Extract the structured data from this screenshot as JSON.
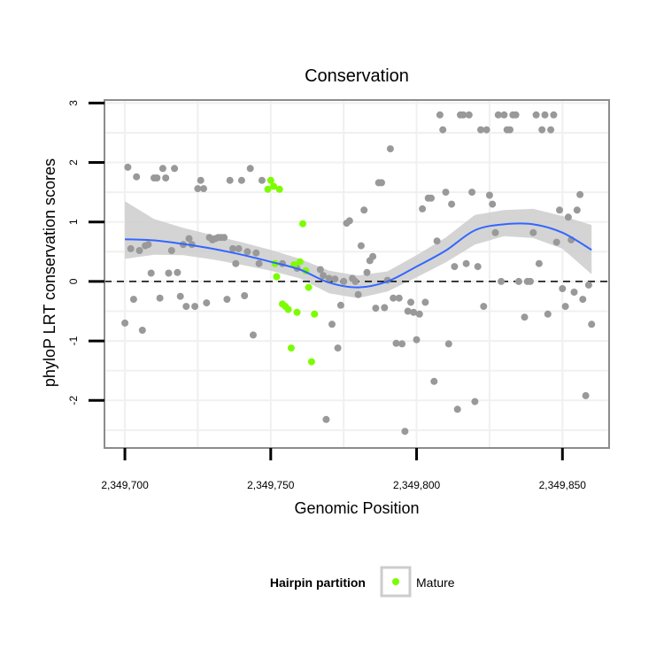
{
  "chart_data": {
    "type": "scatter",
    "title": "Conservation",
    "xlabel": "Genomic Position",
    "ylabel": "phyloP LRT conservation scores",
    "xlim": [
      2349693,
      2349866
    ],
    "ylim": [
      -2.8,
      3.05
    ],
    "x_ticks": [
      2349700,
      2349750,
      2349800,
      2349850
    ],
    "x_tick_labels": [
      "2,349,700",
      "2,349,750",
      "2,349,800",
      "2,349,850"
    ],
    "y_ticks": [
      -2,
      -1,
      0,
      1,
      2,
      3
    ],
    "y_tick_labels": [
      "-2",
      "-1",
      "0",
      "1",
      "2",
      "3"
    ],
    "reference_line": {
      "y": 0,
      "style": "dashed"
    },
    "grid": true,
    "legend": {
      "title": "Hairpin partition",
      "position": "bottom",
      "entries": [
        {
          "label": "Mature",
          "color": "#7cfc00"
        }
      ]
    },
    "colors": {
      "points": "#999999",
      "mature": "#7cfc00",
      "smooth": "#3366ff",
      "band": "#cccccc"
    },
    "series": [
      {
        "name": "Hairpin",
        "color": "#999999",
        "points": [
          [
            2349700,
            -0.7
          ],
          [
            2349701,
            1.92
          ],
          [
            2349702,
            0.55
          ],
          [
            2349703,
            -0.3
          ],
          [
            2349704,
            1.76
          ],
          [
            2349705,
            0.52
          ],
          [
            2349706,
            -0.82
          ],
          [
            2349707,
            0.6
          ],
          [
            2349708,
            0.62
          ],
          [
            2349709,
            0.14
          ],
          [
            2349710,
            1.74
          ],
          [
            2349711,
            1.74
          ],
          [
            2349712,
            -0.28
          ],
          [
            2349713,
            1.9
          ],
          [
            2349714,
            1.74
          ],
          [
            2349715,
            0.14
          ],
          [
            2349716,
            0.52
          ],
          [
            2349717,
            1.9
          ],
          [
            2349718,
            0.15
          ],
          [
            2349719,
            -0.25
          ],
          [
            2349720,
            0.62
          ],
          [
            2349721,
            -0.42
          ],
          [
            2349722,
            0.72
          ],
          [
            2349723,
            0.62
          ],
          [
            2349724,
            -0.42
          ],
          [
            2349725,
            1.56
          ],
          [
            2349726,
            1.7
          ],
          [
            2349727,
            1.56
          ],
          [
            2349728,
            -0.36
          ],
          [
            2349729,
            0.74
          ],
          [
            2349730,
            0.7
          ],
          [
            2349731,
            0.72
          ],
          [
            2349732,
            0.74
          ],
          [
            2349733,
            0.74
          ],
          [
            2349734,
            0.74
          ],
          [
            2349735,
            -0.3
          ],
          [
            2349736,
            1.7
          ],
          [
            2349737,
            0.55
          ],
          [
            2349738,
            0.3
          ],
          [
            2349739,
            0.55
          ],
          [
            2349740,
            1.7
          ],
          [
            2349741,
            -0.24
          ],
          [
            2349742,
            0.5
          ],
          [
            2349743,
            1.9
          ],
          [
            2349744,
            -0.9
          ],
          [
            2349745,
            0.48
          ],
          [
            2349746,
            0.3
          ],
          [
            2349747,
            1.7
          ],
          [
            2349754,
            0.3
          ],
          [
            2349759,
            0.22
          ],
          [
            2349767,
            0.2
          ],
          [
            2349768,
            0.1
          ],
          [
            2349769,
            -2.32
          ],
          [
            2349770,
            0.05
          ],
          [
            2349771,
            -0.72
          ],
          [
            2349772,
            0.04
          ],
          [
            2349773,
            -1.12
          ],
          [
            2349774,
            -0.4
          ],
          [
            2349775,
            0.0
          ],
          [
            2349776,
            0.98
          ],
          [
            2349777,
            1.02
          ],
          [
            2349778,
            0.05
          ],
          [
            2349779,
            0.0
          ],
          [
            2349780,
            -0.22
          ],
          [
            2349781,
            0.6
          ],
          [
            2349782,
            1.2
          ],
          [
            2349783,
            0.15
          ],
          [
            2349784,
            0.35
          ],
          [
            2349785,
            0.42
          ],
          [
            2349786,
            -0.45
          ],
          [
            2349787,
            1.66
          ],
          [
            2349788,
            1.66
          ],
          [
            2349789,
            -0.44
          ],
          [
            2349790,
            0.02
          ],
          [
            2349791,
            2.23
          ],
          [
            2349792,
            -0.28
          ],
          [
            2349793,
            -1.04
          ],
          [
            2349794,
            -0.28
          ],
          [
            2349795,
            -1.05
          ],
          [
            2349796,
            -2.52
          ],
          [
            2349797,
            -0.5
          ],
          [
            2349798,
            -0.35
          ],
          [
            2349799,
            -0.52
          ],
          [
            2349800,
            -0.98
          ],
          [
            2349801,
            -0.55
          ],
          [
            2349802,
            1.22
          ],
          [
            2349803,
            -0.35
          ],
          [
            2349804,
            1.4
          ],
          [
            2349805,
            1.4
          ],
          [
            2349806,
            -1.68
          ],
          [
            2349807,
            0.68
          ],
          [
            2349808,
            2.8
          ],
          [
            2349809,
            2.55
          ],
          [
            2349810,
            1.5
          ],
          [
            2349811,
            -1.05
          ],
          [
            2349812,
            1.3
          ],
          [
            2349813,
            0.25
          ],
          [
            2349814,
            -2.15
          ],
          [
            2349815,
            2.8
          ],
          [
            2349816,
            2.8
          ],
          [
            2349817,
            0.3
          ],
          [
            2349818,
            2.8
          ],
          [
            2349819,
            1.5
          ],
          [
            2349820,
            -2.02
          ],
          [
            2349821,
            0.25
          ],
          [
            2349822,
            2.55
          ],
          [
            2349823,
            -0.42
          ],
          [
            2349824,
            2.55
          ],
          [
            2349825,
            1.45
          ],
          [
            2349826,
            1.3
          ],
          [
            2349827,
            0.82
          ],
          [
            2349828,
            2.8
          ],
          [
            2349829,
            0.0
          ],
          [
            2349830,
            2.8
          ],
          [
            2349831,
            2.55
          ],
          [
            2349832,
            2.55
          ],
          [
            2349833,
            2.8
          ],
          [
            2349834,
            2.8
          ],
          [
            2349835,
            0.0
          ],
          [
            2349837,
            -0.6
          ],
          [
            2349838,
            0.0
          ],
          [
            2349839,
            0.0
          ],
          [
            2349840,
            0.82
          ],
          [
            2349841,
            2.8
          ],
          [
            2349842,
            0.3
          ],
          [
            2349843,
            2.55
          ],
          [
            2349844,
            2.8
          ],
          [
            2349845,
            -0.55
          ],
          [
            2349846,
            2.55
          ],
          [
            2349847,
            2.8
          ],
          [
            2349848,
            0.66
          ],
          [
            2349849,
            1.2
          ],
          [
            2349850,
            -0.12
          ],
          [
            2349851,
            -0.42
          ],
          [
            2349852,
            1.08
          ],
          [
            2349853,
            0.7
          ],
          [
            2349854,
            -0.18
          ],
          [
            2349855,
            1.2
          ],
          [
            2349856,
            1.46
          ],
          [
            2349857,
            -0.3
          ],
          [
            2349858,
            -1.92
          ],
          [
            2349859,
            -0.06
          ],
          [
            2349860,
            -0.72
          ]
        ]
      },
      {
        "name": "Mature",
        "color": "#7cfc00",
        "points": [
          [
            2349749,
            1.55
          ],
          [
            2349750,
            1.7
          ],
          [
            2349751,
            1.6
          ],
          [
            2349751.5,
            0.3
          ],
          [
            2349752,
            0.08
          ],
          [
            2349753,
            1.55
          ],
          [
            2349754,
            -0.38
          ],
          [
            2349755,
            -0.42
          ],
          [
            2349756,
            -0.47
          ],
          [
            2349757,
            -1.12
          ],
          [
            2349758,
            0.28
          ],
          [
            2349759,
            -0.52
          ],
          [
            2349760,
            0.33
          ],
          [
            2349761,
            0.97
          ],
          [
            2349762,
            0.18
          ],
          [
            2349763,
            -0.1
          ],
          [
            2349764,
            -1.35
          ],
          [
            2349765,
            -0.55
          ]
        ]
      }
    ],
    "smooth": {
      "x": [
        2349700,
        2349710,
        2349720,
        2349730,
        2349740,
        2349750,
        2349760,
        2349770,
        2349780,
        2349790,
        2349800,
        2349810,
        2349820,
        2349830,
        2349840,
        2349850,
        2349860
      ],
      "y": [
        0.71,
        0.69,
        0.63,
        0.55,
        0.45,
        0.33,
        0.2,
        -0.02,
        -0.1,
        0.0,
        0.25,
        0.52,
        0.86,
        0.96,
        0.96,
        0.82,
        0.53
      ],
      "lower": [
        0.38,
        0.45,
        0.44,
        0.37,
        0.28,
        0.18,
        0.05,
        -0.2,
        -0.28,
        -0.17,
        0.07,
        0.32,
        0.62,
        0.76,
        0.73,
        0.55,
        0.12
      ],
      "upper": [
        1.35,
        1.05,
        0.9,
        0.78,
        0.66,
        0.53,
        0.38,
        0.18,
        0.1,
        0.17,
        0.44,
        0.74,
        1.12,
        1.2,
        1.22,
        1.1,
        0.95
      ]
    }
  }
}
